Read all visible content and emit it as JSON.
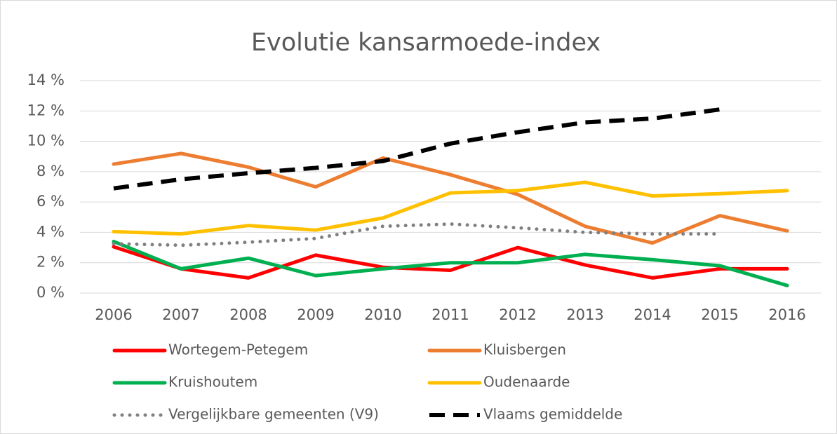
{
  "chart_data": {
    "type": "line",
    "title": "Evolutie kansarmoede-index",
    "categories": [
      "2006",
      "2007",
      "2008",
      "2009",
      "2010",
      "2011",
      "2012",
      "2013",
      "2014",
      "2015",
      "2016"
    ],
    "series": [
      {
        "name": "Wortegem-Petegem",
        "color": "#ff0000",
        "style": "solid",
        "values": [
          3.05,
          1.6,
          1.0,
          2.5,
          1.7,
          1.5,
          3.0,
          1.85,
          1.0,
          1.6,
          1.6
        ]
      },
      {
        "name": "Kluisbergen",
        "color": "#ed7d31",
        "style": "solid",
        "values": [
          8.5,
          9.2,
          8.3,
          7.0,
          8.9,
          7.8,
          6.5,
          4.4,
          3.3,
          5.1,
          4.1
        ]
      },
      {
        "name": "Kruishoutem",
        "color": "#00b050",
        "style": "solid",
        "values": [
          3.4,
          1.6,
          2.3,
          1.15,
          1.6,
          2.0,
          2.0,
          2.55,
          2.2,
          1.8,
          0.5
        ]
      },
      {
        "name": "Oudenaarde",
        "color": "#ffc000",
        "style": "solid",
        "values": [
          4.05,
          3.9,
          4.45,
          4.15,
          4.95,
          6.6,
          6.75,
          7.3,
          6.4,
          6.55,
          6.75
        ]
      },
      {
        "name": "Vergelijkbare gemeenten (V9)",
        "color": "#808080",
        "style": "dotted",
        "values": [
          3.25,
          3.15,
          3.35,
          3.6,
          4.4,
          4.55,
          4.3,
          4.0,
          3.9,
          3.9,
          null
        ]
      },
      {
        "name": "Vlaams gemiddelde",
        "color": "#000000",
        "style": "dashed",
        "values": [
          6.9,
          7.5,
          7.9,
          8.25,
          8.7,
          9.85,
          10.6,
          11.25,
          11.5,
          12.1,
          null
        ]
      }
    ],
    "ylim": [
      0,
      14
    ],
    "yticks": [
      {
        "value": 0,
        "label": "0 %"
      },
      {
        "value": 2,
        "label": "2 %"
      },
      {
        "value": 4,
        "label": "4 %"
      },
      {
        "value": 6,
        "label": "6 %"
      },
      {
        "value": 8,
        "label": "8 %"
      },
      {
        "value": 10,
        "label": "10 %"
      },
      {
        "value": 12,
        "label": "12 %"
      },
      {
        "value": 14,
        "label": "14 %"
      }
    ],
    "grid": true,
    "legend": "bottom"
  }
}
